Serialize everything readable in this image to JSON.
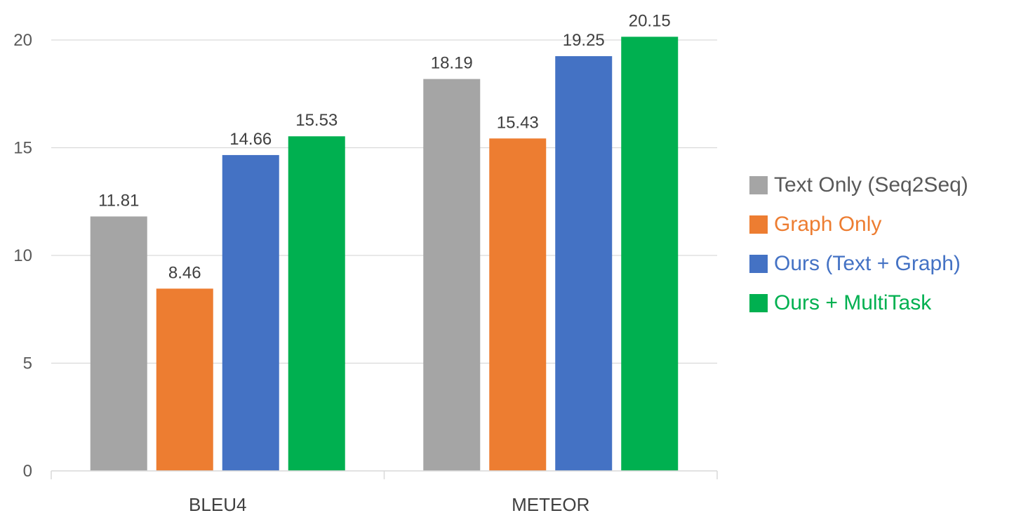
{
  "chart_data": {
    "type": "bar",
    "categories": [
      "BLEU4",
      "METEOR"
    ],
    "series": [
      {
        "name": "Text Only (Seq2Seq)",
        "color": "#a5a5a5",
        "values": [
          11.81,
          18.19
        ]
      },
      {
        "name": "Graph Only",
        "color": "#ed7d31",
        "values": [
          8.46,
          15.43
        ]
      },
      {
        "name": "Ours (Text + Graph)",
        "color": "#4472c4",
        "values": [
          14.66,
          19.25
        ]
      },
      {
        "name": "Ours + MultiTask",
        "color": "#00b050",
        "values": [
          15.53,
          20.15
        ]
      }
    ],
    "data_labels": [
      [
        "11.81",
        "18.19"
      ],
      [
        "8.46",
        "15.43"
      ],
      [
        "14.66",
        "19.25"
      ],
      [
        "15.53",
        "20.15"
      ]
    ],
    "ylim": [
      0,
      20
    ],
    "yticks": [
      "0",
      "5",
      "10",
      "15",
      "20"
    ],
    "grid": true,
    "legend_position": "right",
    "legend_text_colors": [
      "#595959",
      "#ed7d31",
      "#4472c4",
      "#00b050"
    ]
  }
}
